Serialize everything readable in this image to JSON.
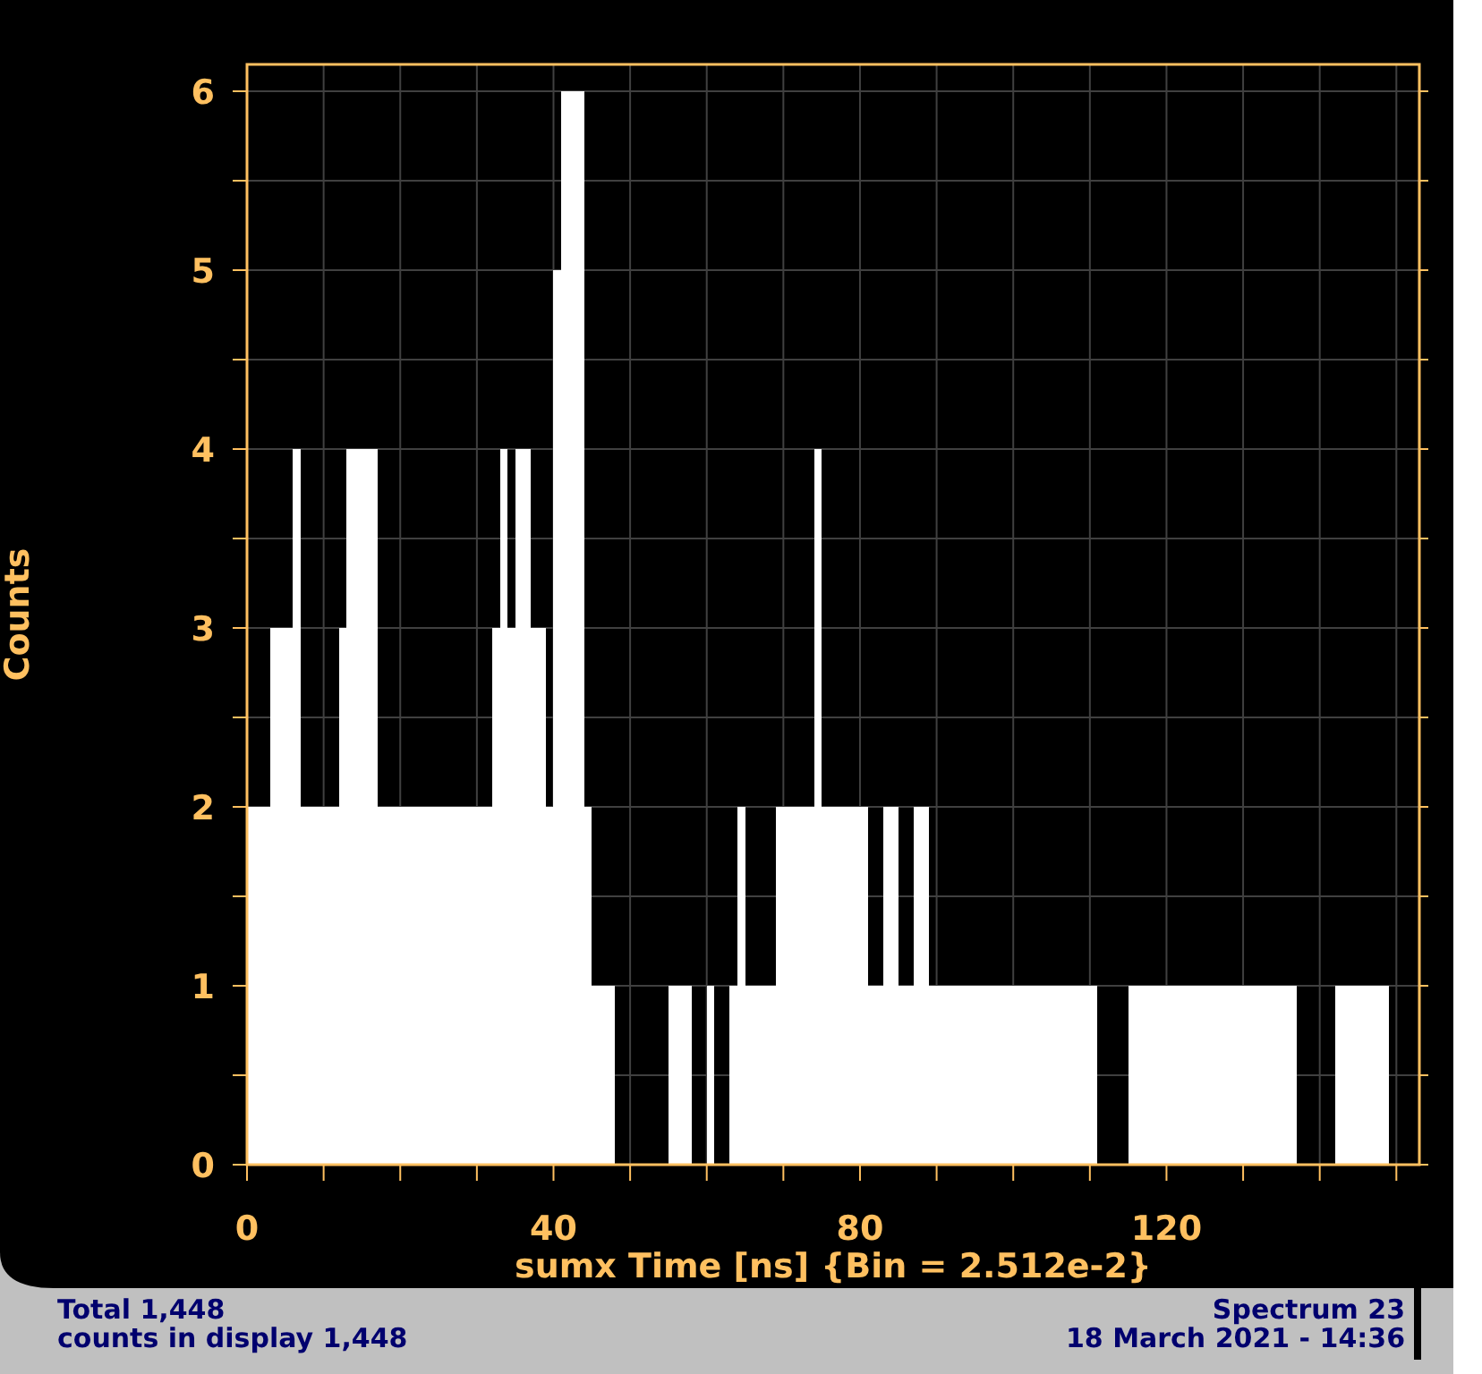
{
  "chart_data": {
    "type": "histogram",
    "xlabel": "sumx Time [ns] {Bin = 2.512e-2}",
    "ylabel": "Counts",
    "bins": [
      0,
      1,
      2,
      3,
      4,
      5,
      6,
      7,
      8,
      9,
      10,
      11,
      12,
      13,
      14,
      15,
      16,
      17,
      18,
      19,
      20,
      21,
      22,
      23,
      24,
      25,
      26,
      27,
      28,
      29,
      30,
      31,
      32,
      33,
      34,
      35,
      36,
      37,
      38,
      39,
      40,
      41,
      42,
      43,
      44,
      45,
      46,
      47,
      48,
      49,
      50,
      51,
      52,
      53,
      54,
      55,
      56,
      57,
      58,
      59,
      60,
      61,
      62,
      63,
      64,
      65,
      66,
      67,
      68,
      69,
      70,
      71,
      72,
      73,
      74,
      75,
      76,
      77,
      78,
      79,
      80,
      81,
      82,
      83,
      84,
      85,
      86,
      87,
      88,
      89,
      90,
      91,
      92,
      93,
      94,
      95,
      96,
      97,
      98,
      99,
      100,
      101,
      102,
      103,
      104,
      105,
      106,
      107,
      108,
      109,
      110,
      111,
      112,
      113,
      114,
      115,
      116,
      117,
      118,
      119,
      120,
      121,
      122,
      123,
      124,
      125,
      126,
      127,
      128,
      129,
      130,
      131,
      132,
      133,
      134,
      135,
      136,
      137,
      138,
      139,
      140,
      141,
      142,
      143,
      144,
      145,
      146,
      147,
      148,
      149,
      150,
      151,
      152,
      153
    ],
    "values": [
      2,
      2,
      2,
      3,
      3,
      3,
      4,
      2,
      2,
      2,
      2,
      2,
      3,
      4,
      4,
      4,
      4,
      2,
      2,
      2,
      2,
      2,
      2,
      2,
      2,
      2,
      2,
      2,
      2,
      2,
      2,
      2,
      3,
      4,
      3,
      4,
      4,
      3,
      3,
      2,
      5,
      6,
      6,
      6,
      2,
      1,
      1,
      1,
      0,
      0,
      0,
      0,
      0,
      0,
      0,
      1,
      1,
      1,
      0,
      0,
      1,
      0,
      0,
      1,
      2,
      1,
      1,
      1,
      1,
      2,
      2,
      2,
      2,
      2,
      4,
      2,
      2,
      2,
      2,
      2,
      2,
      1,
      1,
      2,
      2,
      1,
      1,
      2,
      2,
      1,
      1,
      1,
      1,
      1,
      1,
      1,
      1,
      1,
      1,
      1,
      1,
      1,
      1,
      1,
      1,
      1,
      1,
      1,
      1,
      1,
      1,
      0,
      0,
      0,
      0,
      1,
      1,
      1,
      1,
      1,
      1,
      1,
      1,
      1,
      1,
      1,
      1,
      1,
      1,
      1,
      1,
      1,
      1,
      1,
      1,
      1,
      1,
      0,
      0,
      0,
      0,
      0,
      1,
      1,
      1,
      1,
      1,
      1,
      1,
      0,
      0,
      0,
      0
    ],
    "color": "#ffffff",
    "xlim": [
      0,
      153
    ],
    "ylim": [
      0,
      6.15
    ],
    "xticks": [
      0,
      {
        "value": 10,
        "label": null
      },
      {
        "value": 20,
        "label": null
      },
      {
        "value": 30,
        "label": null
      },
      40,
      {
        "value": 50,
        "label": null
      },
      {
        "value": 60,
        "label": null
      },
      {
        "value": 70,
        "label": null
      },
      80,
      {
        "value": 90,
        "label": null
      },
      {
        "value": 100,
        "label": null
      },
      {
        "value": 110,
        "label": null
      },
      120,
      {
        "value": 130,
        "label": null
      },
      {
        "value": 140,
        "label": null
      },
      {
        "value": 150,
        "label": null
      }
    ],
    "yticks": [
      0,
      {
        "value": 0.5,
        "label": null
      },
      1,
      {
        "value": 1.5,
        "label": null
      },
      2,
      {
        "value": 2.5,
        "label": null
      },
      3,
      {
        "value": 3.5,
        "label": null
      },
      4,
      {
        "value": 4.5,
        "label": null
      },
      5,
      {
        "value": 5.5,
        "label": null
      },
      6
    ],
    "grid": true,
    "annotations": [
      "Total 1,448",
      "counts in display 1,448",
      "Spectrum 23",
      "18 March 2021 - 14:36"
    ]
  }
}
